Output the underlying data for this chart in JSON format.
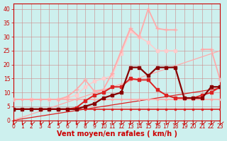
{
  "xlabel": "Vent moyen/en rafales ( km/h )",
  "bg_color": "#cdf0ee",
  "grid_color": "#cc8888",
  "axis_color": "#cc0000",
  "font_color": "#cc0000",
  "xlim": [
    0,
    23
  ],
  "ylim": [
    0,
    42
  ],
  "xticks": [
    0,
    1,
    2,
    3,
    4,
    5,
    6,
    7,
    8,
    9,
    10,
    11,
    12,
    13,
    14,
    15,
    16,
    17,
    18,
    19,
    20,
    21,
    22,
    23
  ],
  "yticks": [
    0,
    5,
    10,
    15,
    20,
    25,
    30,
    35,
    40
  ],
  "lines": [
    {
      "x": [
        0,
        1,
        2,
        3,
        4,
        5,
        6,
        7,
        8,
        9,
        10,
        11,
        12,
        13,
        14,
        15,
        16,
        17,
        18,
        19,
        20,
        21,
        22,
        23
      ],
      "y": [
        4,
        4,
        4,
        4,
        4,
        4,
        4,
        4,
        4,
        4,
        4,
        4,
        4,
        4,
        4,
        4,
        4,
        4,
        4,
        4,
        4,
        4,
        4,
        4
      ],
      "color": "#dd2222",
      "lw": 1.2,
      "marker": "s",
      "ms": 2.0,
      "zorder": 4
    },
    {
      "x": [
        0,
        1,
        2,
        3,
        4,
        5,
        6,
        7,
        8,
        9,
        10,
        11,
        12,
        13,
        14,
        15,
        16,
        17,
        18,
        19,
        20,
        21,
        22,
        23
      ],
      "y": [
        7.5,
        7.5,
        7.5,
        7.5,
        7.5,
        7.5,
        7.5,
        7.5,
        7.5,
        7.5,
        7.5,
        7.5,
        7.5,
        7.5,
        7.5,
        7.5,
        7.5,
        7.5,
        7.5,
        7.5,
        7.5,
        7.5,
        7.5,
        7.5
      ],
      "color": "#ffaaaa",
      "lw": 1.2,
      "marker": "s",
      "ms": 2.0,
      "zorder": 4
    },
    {
      "x": [
        0,
        23
      ],
      "y": [
        0,
        11.5
      ],
      "color": "#dd2222",
      "lw": 0.9,
      "marker": null,
      "ms": 0,
      "zorder": 2
    },
    {
      "x": [
        0,
        23
      ],
      "y": [
        0,
        25
      ],
      "color": "#ffaaaa",
      "lw": 0.9,
      "marker": null,
      "ms": 0,
      "zorder": 2
    },
    {
      "x": [
        0,
        3,
        5,
        6,
        7,
        8,
        9,
        10,
        11,
        12,
        13,
        14,
        15,
        16,
        17,
        18,
        19,
        20,
        21,
        22,
        23
      ],
      "y": [
        7.5,
        7.5,
        7.5,
        8.5,
        11,
        14.5,
        10.5,
        11,
        17,
        25,
        33,
        30,
        40,
        33,
        32.5,
        32.5,
        null,
        null,
        25.5,
        25.5,
        14.5
      ],
      "color": "#ffaaaa",
      "lw": 1.3,
      "marker": "+",
      "ms": 5,
      "zorder": 5
    },
    {
      "x": [
        0,
        2,
        4,
        5,
        6,
        7,
        8,
        9,
        10,
        11,
        12,
        13,
        14,
        15,
        16,
        17,
        18,
        19,
        20,
        21,
        22,
        23
      ],
      "y": [
        7.5,
        7.5,
        7.5,
        7.5,
        8,
        9,
        12,
        14,
        15,
        16,
        24,
        32,
        30,
        28,
        25,
        25,
        25,
        null,
        null,
        null,
        null,
        null
      ],
      "color": "#ffcccc",
      "lw": 1.1,
      "marker": "s",
      "ms": 2.2,
      "zorder": 3
    },
    {
      "x": [
        0,
        3,
        5,
        6,
        7,
        8,
        9,
        10,
        11,
        12,
        13,
        14,
        15,
        16,
        17,
        18,
        19,
        20,
        21,
        22,
        23
      ],
      "y": [
        4,
        4,
        4,
        4,
        4.5,
        7,
        9,
        10,
        12,
        12,
        15,
        14.5,
        14.5,
        11,
        9,
        8,
        8,
        8,
        9,
        10,
        12
      ],
      "color": "#dd2222",
      "lw": 1.4,
      "marker": "s",
      "ms": 2.5,
      "zorder": 5
    },
    {
      "x": [
        0,
        1,
        2,
        3,
        4,
        5,
        6,
        7,
        8,
        9,
        10,
        11,
        12,
        13,
        14,
        15,
        16,
        17,
        18,
        19,
        20,
        21,
        22,
        23
      ],
      "y": [
        4,
        4,
        4,
        4,
        4,
        4,
        4,
        4,
        5,
        6,
        8,
        9,
        10,
        19,
        19,
        16,
        19,
        19,
        19,
        8,
        8,
        8,
        12,
        12
      ],
      "color": "#880000",
      "lw": 1.6,
      "marker": "s",
      "ms": 2.5,
      "zorder": 5
    }
  ],
  "tick_fontsize": 5.5,
  "label_fontsize": 7
}
